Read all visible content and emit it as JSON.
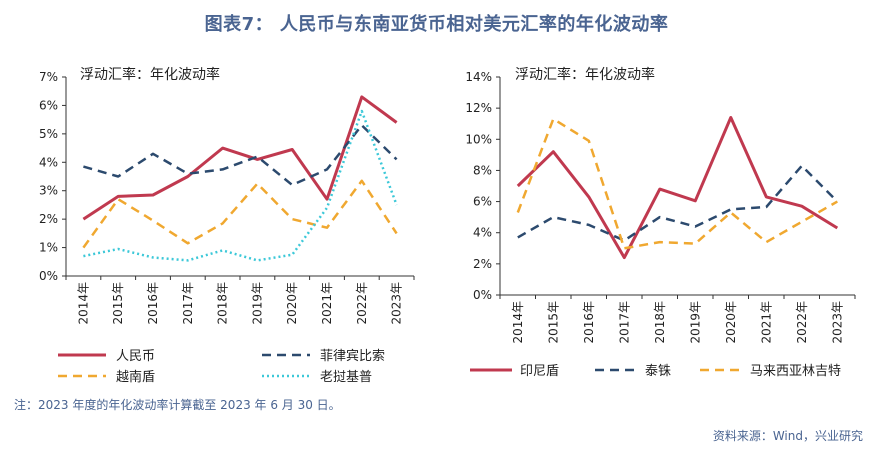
{
  "figure_title": "图表7： 人民币与东南亚货币相对美元汇率的年化波动率",
  "footnote": "注：2023 年度的年化波动率计算截至 2023 年 6 月 30 日。",
  "source": "资料来源：Wind，兴业研究",
  "colors": {
    "red": "#c0394f",
    "navy": "#2c4a6e",
    "orange": "#f0a830",
    "cyan": "#3cc8d8",
    "axis": "#333333"
  },
  "chart_data": [
    {
      "type": "line",
      "title": "浮动汇率：年化波动率",
      "categories": [
        "2014年",
        "2015年",
        "2016年",
        "2017年",
        "2018年",
        "2019年",
        "2020年",
        "2021年",
        "2022年",
        "2023年"
      ],
      "ylim": [
        0,
        7
      ],
      "yticks": [
        "0%",
        "1%",
        "2%",
        "3%",
        "4%",
        "5%",
        "6%",
        "7%"
      ],
      "legend_position": "bottom",
      "series": [
        {
          "name": "人民币",
          "color": "#c0394f",
          "style": "solid",
          "values": [
            2.0,
            2.8,
            2.85,
            3.5,
            4.5,
            4.1,
            4.45,
            2.7,
            6.3,
            5.4
          ]
        },
        {
          "name": "菲律宾比索",
          "color": "#2c4a6e",
          "style": "dashed",
          "values": [
            3.85,
            3.5,
            4.3,
            3.6,
            3.75,
            4.2,
            3.2,
            3.75,
            5.3,
            4.1
          ]
        },
        {
          "name": "越南盾",
          "color": "#f0a830",
          "style": "dashed",
          "values": [
            1.0,
            2.7,
            1.95,
            1.15,
            1.85,
            3.25,
            2.0,
            1.7,
            3.35,
            1.5
          ]
        },
        {
          "name": "老挝基普",
          "color": "#3cc8d8",
          "style": "dotted",
          "values": [
            0.7,
            0.95,
            0.65,
            0.55,
            0.9,
            0.55,
            0.75,
            2.4,
            5.8,
            2.5
          ]
        }
      ]
    },
    {
      "type": "line",
      "title": "浮动汇率：年化波动率",
      "categories": [
        "2014年",
        "2015年",
        "2016年",
        "2017年",
        "2018年",
        "2019年",
        "2020年",
        "2021年",
        "2022年",
        "2023年"
      ],
      "ylim": [
        0,
        14
      ],
      "yticks": [
        "0%",
        "2%",
        "4%",
        "6%",
        "8%",
        "10%",
        "12%",
        "14%"
      ],
      "legend_position": "bottom",
      "series": [
        {
          "name": "印尼盾",
          "color": "#c0394f",
          "style": "solid",
          "values": [
            7.0,
            9.2,
            6.3,
            2.4,
            6.8,
            6.05,
            11.4,
            6.3,
            5.7,
            4.3
          ]
        },
        {
          "name": "泰铢",
          "color": "#2c4a6e",
          "style": "dashed",
          "values": [
            3.7,
            5.0,
            4.5,
            3.5,
            5.0,
            4.4,
            5.5,
            5.65,
            8.3,
            6.0
          ]
        },
        {
          "name": "马来西亚林吉特",
          "color": "#f0a830",
          "style": "dashed",
          "values": [
            5.3,
            11.3,
            9.9,
            3.0,
            3.4,
            3.3,
            5.3,
            3.4,
            4.7,
            6.0
          ]
        }
      ]
    }
  ]
}
